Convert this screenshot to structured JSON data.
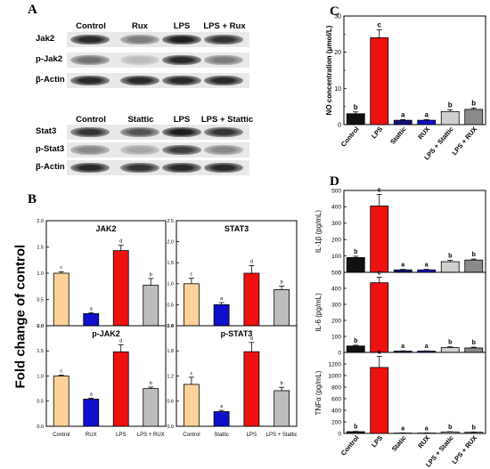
{
  "panels": {
    "A": "A",
    "B": "B",
    "C": "C",
    "D": "D"
  },
  "blot_A": {
    "jak": {
      "lanes": [
        "Control",
        "Rux",
        "LPS",
        "LPS + Rux"
      ],
      "rows": [
        {
          "label": "Jak2",
          "intensities": [
            0.9,
            0.5,
            0.95,
            0.85
          ]
        },
        {
          "label": "p-Jak2",
          "intensities": [
            0.55,
            0.2,
            0.9,
            0.5
          ]
        },
        {
          "label": "β-Actin",
          "intensities": [
            0.9,
            0.9,
            0.9,
            0.9
          ]
        }
      ]
    },
    "stat": {
      "lanes": [
        "Control",
        "Stattic",
        "LPS",
        "LPS + Stattic"
      ],
      "rows": [
        {
          "label": "Stat3",
          "intensities": [
            0.85,
            0.7,
            0.95,
            0.85
          ]
        },
        {
          "label": "p-Stat3",
          "intensities": [
            0.45,
            0.3,
            0.8,
            0.45
          ]
        },
        {
          "label": "β-Actin",
          "intensities": [
            0.9,
            0.85,
            0.9,
            0.9
          ]
        }
      ]
    }
  },
  "panel_B": {
    "ylabel": "Fold change of control",
    "subplots": [
      {
        "title": "JAK2",
        "yticks": [
          "0.0",
          "0.5",
          "1.0",
          "1.5",
          "2.0"
        ],
        "ymax": 2.0,
        "values": [
          1.0,
          0.23,
          1.43,
          0.77
        ],
        "errors": [
          0.03,
          0.02,
          0.1,
          0.13
        ],
        "letters": [
          "c",
          "a",
          "d",
          "b"
        ]
      },
      {
        "title": "STAT3",
        "yticks": [
          "0.0",
          "0.5",
          "1.0",
          "1.5",
          "2.0",
          "2.5"
        ],
        "ymax": 2.5,
        "values": [
          1.0,
          0.5,
          1.25,
          0.86
        ],
        "errors": [
          0.13,
          0.05,
          0.18,
          0.08
        ],
        "letters": [
          "c",
          "a",
          "d",
          "b"
        ]
      },
      {
        "title": "p-JAK2",
        "yticks": [
          "0.0",
          "0.5",
          "1.0",
          "1.5",
          "2.0"
        ],
        "ymax": 2.0,
        "values": [
          1.0,
          0.54,
          1.48,
          0.75
        ],
        "errors": [
          0.02,
          0.02,
          0.14,
          0.03
        ],
        "letters": [
          "c",
          "a",
          "d",
          "b"
        ]
      },
      {
        "title": "p-STAT3",
        "yticks": [
          "0.0",
          "0.6",
          "1.2",
          "1.8",
          "2.4"
        ],
        "ymax": 2.4,
        "values": [
          1.0,
          0.35,
          1.78,
          0.85
        ],
        "errors": [
          0.17,
          0.03,
          0.22,
          0.08
        ],
        "letters": [
          "c",
          "a",
          "d",
          "b"
        ]
      }
    ],
    "xlabels_left": [
      "Control",
      "RUX",
      "LPS",
      "LPS + RUX"
    ],
    "xlabels_right": [
      "Control",
      "Stattic",
      "LPS",
      "LPS + Stattic"
    ],
    "colors": [
      "#fcd29a",
      "#1010cc",
      "#ee1111",
      "#bdbdbd"
    ]
  },
  "chart_data": [
    {
      "type": "bar",
      "title": "",
      "ylabel": "NO concentration (μmol/L)",
      "categories": [
        "Control",
        "LPS",
        "Stattic",
        "RUX",
        "LPS + Stattic",
        "LPS + RUX"
      ],
      "values": [
        3.0,
        24.0,
        1.2,
        1.2,
        3.6,
        4.2
      ],
      "errors": [
        0.5,
        2.2,
        0.2,
        0.2,
        0.5,
        0.4
      ],
      "letters": [
        "b",
        "c",
        "a",
        "a",
        "b",
        "b"
      ],
      "ylim": [
        0,
        30
      ],
      "yticks": [
        "0",
        "10",
        "20",
        "30"
      ],
      "colors": [
        "#111111",
        "#ee1111",
        "#101080",
        "#1010cc",
        "#cfcfcf",
        "#8a8a8a"
      ]
    },
    {
      "type": "bar",
      "ylabel": "IL-1β (pg/mL)",
      "categories": [
        "Control",
        "LPS",
        "Static",
        "RUX",
        "LPS + Static",
        "LPS + RUX"
      ],
      "values": [
        90,
        405,
        15,
        15,
        65,
        75
      ],
      "errors": [
        8,
        70,
        3,
        3,
        8,
        6
      ],
      "letters": [
        "b",
        "c",
        "a",
        "a",
        "b",
        "b"
      ],
      "ylim": [
        0,
        500
      ],
      "yticks": [
        "0",
        "100",
        "200",
        "300",
        "400",
        "500"
      ],
      "colors": [
        "#111111",
        "#ee1111",
        "#101080",
        "#1010cc",
        "#cfcfcf",
        "#8a8a8a"
      ]
    },
    {
      "type": "bar",
      "ylabel": "IL-6 (pg/mL)",
      "categories": [
        "Control",
        "LPS",
        "Static",
        "RUX",
        "LPS + Static",
        "LPS + RUX"
      ],
      "values": [
        40,
        435,
        8,
        8,
        30,
        28
      ],
      "errors": [
        5,
        35,
        2,
        2,
        5,
        5
      ],
      "letters": [
        "b",
        "c",
        "a",
        "a",
        "b",
        "b"
      ],
      "ylim": [
        0,
        500
      ],
      "yticks": [
        "0",
        "100",
        "200",
        "300",
        "400",
        "500"
      ],
      "colors": [
        "#111111",
        "#ee1111",
        "#101080",
        "#1010cc",
        "#cfcfcf",
        "#8a8a8a"
      ]
    },
    {
      "type": "bar",
      "ylabel": "TNFα (pg/mL)",
      "categories": [
        "Control",
        "LPS",
        "Static",
        "RUX",
        "LPS + Static",
        "LPS + RUX"
      ],
      "values": [
        30,
        1140,
        6,
        6,
        25,
        20
      ],
      "errors": [
        5,
        190,
        2,
        2,
        5,
        4
      ],
      "letters": [
        "b",
        "c",
        "a",
        "a",
        "b",
        "b"
      ],
      "ylim": [
        0,
        1400
      ],
      "yticks": [
        "0",
        "200",
        "400",
        "600",
        "800",
        "1000",
        "1200"
      ],
      "colors": [
        "#111111",
        "#ee1111",
        "#101080",
        "#1010cc",
        "#cfcfcf",
        "#8a8a8a"
      ]
    }
  ],
  "panel_D_xlabels": [
    "Control",
    "LPS",
    "Static",
    "RUX",
    "LPS + Static",
    "LPS + RUX"
  ]
}
